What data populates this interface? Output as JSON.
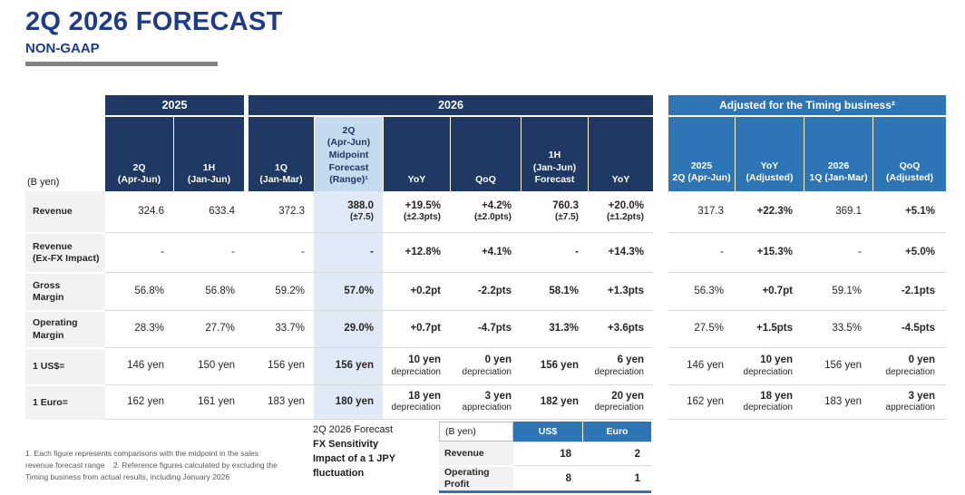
{
  "header": {
    "title": "2Q 2026 FORECAST",
    "subtitle": "NON-GAAP"
  },
  "main_table": {
    "unit_label": "(B yen)",
    "groups": [
      {
        "label": "2025",
        "span": 2
      },
      {
        "label": "2026",
        "span": 6
      }
    ],
    "columns": [
      {
        "header": "2Q\n(Apr-Jun)",
        "emph": false,
        "highlight": false
      },
      {
        "header": "1H\n(Jan-Jun)",
        "emph": false,
        "highlight": false
      },
      {
        "header": "1Q\n(Jan-Mar)",
        "emph": false,
        "highlight": false
      },
      {
        "header": "2Q\n(Apr-Jun)\nMidpoint\nForecast\n(Range)¹",
        "emph": true,
        "highlight": true
      },
      {
        "header": "YoY",
        "emph": true,
        "highlight": false
      },
      {
        "header": "QoQ",
        "emph": true,
        "highlight": false
      },
      {
        "header": "1H\n(Jan-Jun)\nForecast",
        "emph": true,
        "highlight": false
      },
      {
        "header": "YoY",
        "emph": true,
        "highlight": false
      }
    ],
    "rows": [
      {
        "label": "Revenue",
        "sub_regular": false,
        "cells": [
          "324.6",
          "633.4",
          "372.3",
          "388.0\n(±7.5)",
          "+19.5%\n(±2.3pts)",
          "+4.2%\n(±2.0pts)",
          "760.3\n(±7.5)",
          "+20.0%\n(±1.2pts)"
        ]
      },
      {
        "label": "Revenue\n(Ex-FX Impact)",
        "sub_regular": false,
        "cells": [
          "-",
          "-",
          "-",
          "-",
          "+12.8%",
          "+4.1%",
          "-",
          "+14.3%"
        ]
      },
      {
        "label": "Gross\nMargin",
        "sub_regular": false,
        "cells": [
          "56.8%",
          "56.8%",
          "59.2%",
          "57.0%",
          "+0.2pt",
          "-2.2pts",
          "58.1%",
          "+1.3pts"
        ]
      },
      {
        "label": "Operating\nMargin",
        "sub_regular": false,
        "cells": [
          "28.3%",
          "27.7%",
          "33.7%",
          "29.0%",
          "+0.7pt",
          "-4.7pts",
          "31.3%",
          "+3.6pts"
        ]
      },
      {
        "label": "1 US$=",
        "sub_regular": true,
        "cells": [
          "146 yen",
          "150 yen",
          "156 yen",
          "156 yen",
          "10 yen\ndepreciation",
          "0 yen\ndepreciation",
          "156 yen",
          "6 yen\ndepreciation"
        ]
      },
      {
        "label": "1 Euro=",
        "sub_regular": true,
        "cells": [
          "162 yen",
          "161 yen",
          "183 yen",
          "180 yen",
          "18 yen\ndepreciation",
          "3 yen\nappreciation",
          "182 yen",
          "20 yen\ndepreciation"
        ]
      }
    ]
  },
  "adjusted_table": {
    "title": "Adjusted for the Timing business²",
    "columns": [
      {
        "header": "2025\n2Q (Apr-Jun)",
        "emph": false
      },
      {
        "header": "YoY\n(Adjusted)",
        "emph": true
      },
      {
        "header": "2026\n1Q (Jan-Mar)",
        "emph": false
      },
      {
        "header": "QoQ\n(Adjusted)",
        "emph": true
      }
    ],
    "rows": [
      {
        "sub_regular": false,
        "cells": [
          "317.3",
          "+22.3%",
          "369.1",
          "+5.1%"
        ]
      },
      {
        "sub_regular": false,
        "cells": [
          "-",
          "+15.3%",
          "-",
          "+5.0%"
        ]
      },
      {
        "sub_regular": false,
        "cells": [
          "56.3%",
          "+0.7pt",
          "59.1%",
          "-2.1pts"
        ]
      },
      {
        "sub_regular": false,
        "cells": [
          "27.5%",
          "+1.5pts",
          "33.5%",
          "-4.5pts"
        ]
      },
      {
        "sub_regular": true,
        "cells": [
          "146 yen",
          "10 yen\ndepreciation",
          "156 yen",
          "0 yen\ndepreciation"
        ]
      },
      {
        "sub_regular": true,
        "cells": [
          "162 yen",
          "18 yen\ndepreciation",
          "183 yen",
          "3 yen\nappreciation"
        ]
      }
    ]
  },
  "fx_sensitivity": {
    "caption": [
      "2Q 2026 Forecast",
      "FX Sensitivity",
      "Impact of a 1 JPY fluctuation"
    ],
    "caption_emph": [
      false,
      true,
      true
    ],
    "unit_label": "(B yen)",
    "columns": [
      "US$",
      "Euro"
    ],
    "rows": [
      {
        "label": "Revenue",
        "values": [
          "18",
          "2"
        ]
      },
      {
        "label": "Operating Profit",
        "values": [
          "8",
          "1"
        ]
      }
    ]
  },
  "footnotes": [
    "1. Each figure represents comparisons with the midpoint in the sales",
    "revenue forecast range    2. Reference figures calculated by excluding the",
    "Timing business from actual results, including January 2026"
  ],
  "colors": {
    "navy": "#1f3864",
    "blue": "#2e75b6",
    "highlight_header": "#c5d9ef",
    "highlight_body": "#dfeaf6",
    "label_bg": "#f2f2f2",
    "title_blue": "#1e3a8a",
    "row_border": "#d9d9d9",
    "text": "#262626",
    "footnote_gray": "#595959",
    "underline_gray": "#808080"
  }
}
